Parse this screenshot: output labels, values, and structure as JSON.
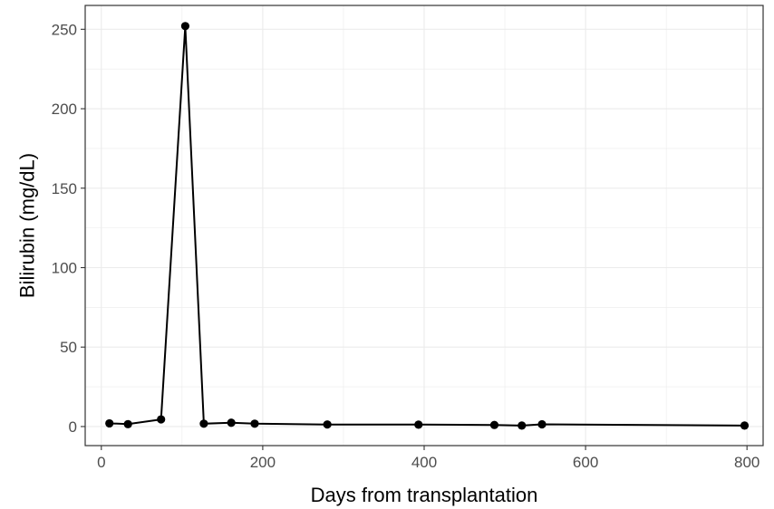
{
  "chart_data": {
    "type": "line",
    "title": "",
    "xlabel": "Days from transplantation",
    "ylabel": "Bilirubin (mg/dL)",
    "xlim": [
      -20,
      820
    ],
    "ylim": [
      -12,
      265
    ],
    "x_ticks": [
      0,
      200,
      400,
      600,
      800
    ],
    "y_ticks": [
      0,
      50,
      100,
      150,
      200,
      250
    ],
    "x_tick_labels": [
      "0",
      "200",
      "400",
      "600",
      "800"
    ],
    "y_tick_labels": [
      "0",
      "50",
      "100",
      "150",
      "200",
      "250"
    ],
    "grid": true,
    "legend": "none",
    "series": [
      {
        "x": [
          10,
          33,
          74,
          104,
          127,
          161,
          190,
          280,
          393,
          487,
          521,
          546,
          797
        ],
        "y": [
          2.0,
          1.5,
          4.5,
          252.0,
          1.8,
          2.4,
          1.8,
          1.3,
          1.2,
          1.0,
          0.6,
          1.4,
          0.6
        ]
      }
    ],
    "colors": {
      "line": "#000000",
      "point": "#000000",
      "grid": "#ebebeb",
      "panel_border": "#333333"
    }
  }
}
